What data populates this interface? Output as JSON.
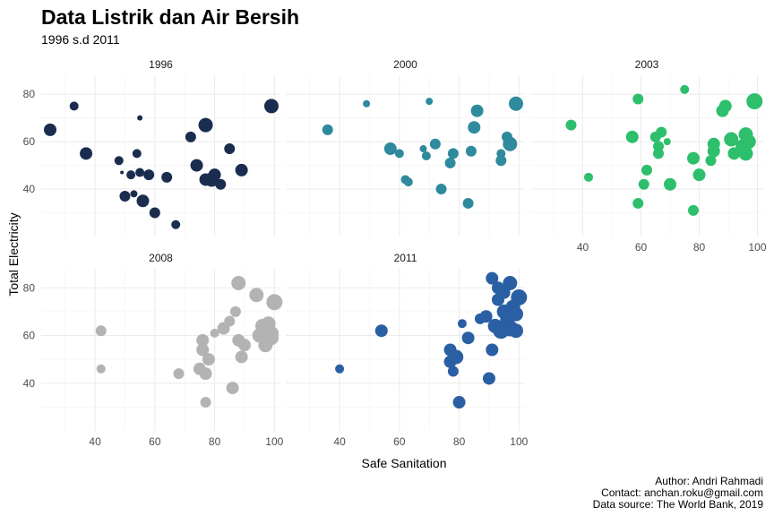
{
  "chart_data": {
    "type": "scatter",
    "title": "Data Listrik dan Air Bersih",
    "subtitle": "1996 s.d 2011",
    "xlabel": "Safe Sanitation",
    "ylabel": "Total Electricity",
    "xlim": [
      22,
      102
    ],
    "ylim": [
      20,
      88
    ],
    "x_ticks": [
      40,
      60,
      80,
      100
    ],
    "y_ticks": [
      40,
      60,
      80
    ],
    "grid": true,
    "legend": "none",
    "facets": [
      {
        "label": "1996",
        "color": "#1b2d4f",
        "points": [
          {
            "x": 25,
            "y": 65,
            "s": 7
          },
          {
            "x": 33,
            "y": 75,
            "s": 5
          },
          {
            "x": 37,
            "y": 55,
            "s": 7
          },
          {
            "x": 48,
            "y": 52,
            "s": 5
          },
          {
            "x": 49,
            "y": 47,
            "s": 2
          },
          {
            "x": 50,
            "y": 37,
            "s": 6
          },
          {
            "x": 52,
            "y": 46,
            "s": 5
          },
          {
            "x": 53,
            "y": 38,
            "s": 4
          },
          {
            "x": 54,
            "y": 55,
            "s": 5
          },
          {
            "x": 55,
            "y": 70,
            "s": 3
          },
          {
            "x": 55,
            "y": 47,
            "s": 5
          },
          {
            "x": 56,
            "y": 35,
            "s": 7
          },
          {
            "x": 58,
            "y": 46,
            "s": 6
          },
          {
            "x": 60,
            "y": 30,
            "s": 6
          },
          {
            "x": 64,
            "y": 45,
            "s": 6
          },
          {
            "x": 67,
            "y": 25,
            "s": 5
          },
          {
            "x": 72,
            "y": 62,
            "s": 6
          },
          {
            "x": 74,
            "y": 50,
            "s": 7
          },
          {
            "x": 77,
            "y": 67,
            "s": 8
          },
          {
            "x": 77,
            "y": 44,
            "s": 7
          },
          {
            "x": 79,
            "y": 44,
            "s": 8
          },
          {
            "x": 80,
            "y": 46,
            "s": 7
          },
          {
            "x": 82,
            "y": 42,
            "s": 6
          },
          {
            "x": 85,
            "y": 57,
            "s": 6
          },
          {
            "x": 89,
            "y": 48,
            "s": 7
          },
          {
            "x": 99,
            "y": 75,
            "s": 8
          }
        ]
      },
      {
        "label": "2000",
        "color": "#2e8a9c",
        "points": [
          {
            "x": 36,
            "y": 65,
            "s": 6
          },
          {
            "x": 49,
            "y": 76,
            "s": 4
          },
          {
            "x": 57,
            "y": 57,
            "s": 7
          },
          {
            "x": 60,
            "y": 55,
            "s": 5
          },
          {
            "x": 62,
            "y": 44,
            "s": 5
          },
          {
            "x": 63,
            "y": 43,
            "s": 5
          },
          {
            "x": 68,
            "y": 57,
            "s": 4
          },
          {
            "x": 69,
            "y": 54,
            "s": 5
          },
          {
            "x": 70,
            "y": 77,
            "s": 4
          },
          {
            "x": 72,
            "y": 59,
            "s": 6
          },
          {
            "x": 74,
            "y": 40,
            "s": 6
          },
          {
            "x": 77,
            "y": 51,
            "s": 6
          },
          {
            "x": 78,
            "y": 55,
            "s": 6
          },
          {
            "x": 83,
            "y": 34,
            "s": 6
          },
          {
            "x": 84,
            "y": 56,
            "s": 6
          },
          {
            "x": 85,
            "y": 66,
            "s": 7
          },
          {
            "x": 86,
            "y": 73,
            "s": 7
          },
          {
            "x": 94,
            "y": 55,
            "s": 5
          },
          {
            "x": 94,
            "y": 52,
            "s": 6
          },
          {
            "x": 96,
            "y": 62,
            "s": 6
          },
          {
            "x": 97,
            "y": 59,
            "s": 8
          },
          {
            "x": 99,
            "y": 76,
            "s": 8
          }
        ]
      },
      {
        "label": "2003",
        "color": "#2dbf6c",
        "points": [
          {
            "x": 36,
            "y": 67,
            "s": 6
          },
          {
            "x": 42,
            "y": 45,
            "s": 5
          },
          {
            "x": 57,
            "y": 62,
            "s": 7
          },
          {
            "x": 59,
            "y": 78,
            "s": 6
          },
          {
            "x": 59,
            "y": 34,
            "s": 6
          },
          {
            "x": 61,
            "y": 42,
            "s": 6
          },
          {
            "x": 62,
            "y": 48,
            "s": 6
          },
          {
            "x": 65,
            "y": 62,
            "s": 6
          },
          {
            "x": 66,
            "y": 58,
            "s": 6
          },
          {
            "x": 66,
            "y": 55,
            "s": 6
          },
          {
            "x": 67,
            "y": 64,
            "s": 6
          },
          {
            "x": 69,
            "y": 60,
            "s": 4
          },
          {
            "x": 70,
            "y": 42,
            "s": 7
          },
          {
            "x": 75,
            "y": 82,
            "s": 5
          },
          {
            "x": 78,
            "y": 53,
            "s": 7
          },
          {
            "x": 78,
            "y": 31,
            "s": 6
          },
          {
            "x": 80,
            "y": 46,
            "s": 7
          },
          {
            "x": 84,
            "y": 52,
            "s": 6
          },
          {
            "x": 85,
            "y": 59,
            "s": 7
          },
          {
            "x": 85,
            "y": 56,
            "s": 7
          },
          {
            "x": 88,
            "y": 73,
            "s": 7
          },
          {
            "x": 89,
            "y": 75,
            "s": 7
          },
          {
            "x": 91,
            "y": 61,
            "s": 8
          },
          {
            "x": 92,
            "y": 55,
            "s": 7
          },
          {
            "x": 95,
            "y": 58,
            "s": 8
          },
          {
            "x": 96,
            "y": 63,
            "s": 8
          },
          {
            "x": 96,
            "y": 55,
            "s": 8
          },
          {
            "x": 97,
            "y": 60,
            "s": 8
          },
          {
            "x": 99,
            "y": 77,
            "s": 9
          }
        ]
      },
      {
        "label": "2008",
        "color": "#b3b3b3",
        "points": [
          {
            "x": 42,
            "y": 62,
            "s": 6
          },
          {
            "x": 42,
            "y": 46,
            "s": 5
          },
          {
            "x": 68,
            "y": 44,
            "s": 6
          },
          {
            "x": 75,
            "y": 46,
            "s": 7
          },
          {
            "x": 76,
            "y": 58,
            "s": 7
          },
          {
            "x": 76,
            "y": 54,
            "s": 7
          },
          {
            "x": 77,
            "y": 32,
            "s": 6
          },
          {
            "x": 77,
            "y": 44,
            "s": 7
          },
          {
            "x": 78,
            "y": 50,
            "s": 7
          },
          {
            "x": 80,
            "y": 61,
            "s": 5
          },
          {
            "x": 83,
            "y": 63,
            "s": 7
          },
          {
            "x": 85,
            "y": 66,
            "s": 6
          },
          {
            "x": 86,
            "y": 38,
            "s": 7
          },
          {
            "x": 87,
            "y": 70,
            "s": 6
          },
          {
            "x": 88,
            "y": 82,
            "s": 8
          },
          {
            "x": 88,
            "y": 58,
            "s": 7
          },
          {
            "x": 89,
            "y": 51,
            "s": 7
          },
          {
            "x": 90,
            "y": 56,
            "s": 7
          },
          {
            "x": 94,
            "y": 77,
            "s": 8
          },
          {
            "x": 95,
            "y": 60,
            "s": 8
          },
          {
            "x": 96,
            "y": 64,
            "s": 8
          },
          {
            "x": 97,
            "y": 56,
            "s": 8
          },
          {
            "x": 98,
            "y": 65,
            "s": 8
          },
          {
            "x": 99,
            "y": 61,
            "s": 8
          },
          {
            "x": 99,
            "y": 59,
            "s": 8
          },
          {
            "x": 100,
            "y": 74,
            "s": 9
          }
        ]
      },
      {
        "label": "2011",
        "color": "#2a5fa3",
        "points": [
          {
            "x": 40,
            "y": 46,
            "s": 5
          },
          {
            "x": 54,
            "y": 62,
            "s": 7
          },
          {
            "x": 77,
            "y": 54,
            "s": 7
          },
          {
            "x": 77,
            "y": 49,
            "s": 7
          },
          {
            "x": 78,
            "y": 45,
            "s": 6
          },
          {
            "x": 79,
            "y": 51,
            "s": 8
          },
          {
            "x": 80,
            "y": 32,
            "s": 7
          },
          {
            "x": 81,
            "y": 65,
            "s": 5
          },
          {
            "x": 83,
            "y": 59,
            "s": 7
          },
          {
            "x": 87,
            "y": 67,
            "s": 6
          },
          {
            "x": 89,
            "y": 68,
            "s": 7
          },
          {
            "x": 90,
            "y": 42,
            "s": 7
          },
          {
            "x": 91,
            "y": 54,
            "s": 7
          },
          {
            "x": 91,
            "y": 84,
            "s": 7
          },
          {
            "x": 92,
            "y": 64,
            "s": 8
          },
          {
            "x": 93,
            "y": 80,
            "s": 7
          },
          {
            "x": 93,
            "y": 75,
            "s": 7
          },
          {
            "x": 94,
            "y": 62,
            "s": 9
          },
          {
            "x": 95,
            "y": 70,
            "s": 8
          },
          {
            "x": 95,
            "y": 78,
            "s": 7
          },
          {
            "x": 96,
            "y": 66,
            "s": 8
          },
          {
            "x": 97,
            "y": 82,
            "s": 8
          },
          {
            "x": 97,
            "y": 63,
            "s": 9
          },
          {
            "x": 98,
            "y": 72,
            "s": 8
          },
          {
            "x": 99,
            "y": 69,
            "s": 8
          },
          {
            "x": 99,
            "y": 62,
            "s": 8
          },
          {
            "x": 100,
            "y": 76,
            "s": 9
          }
        ]
      }
    ]
  },
  "caption": {
    "author": "Author: Andri Rahmadi",
    "contact": "Contact: anchan.roku@gmail.com",
    "source": "Data source: The World Bank, 2019"
  }
}
